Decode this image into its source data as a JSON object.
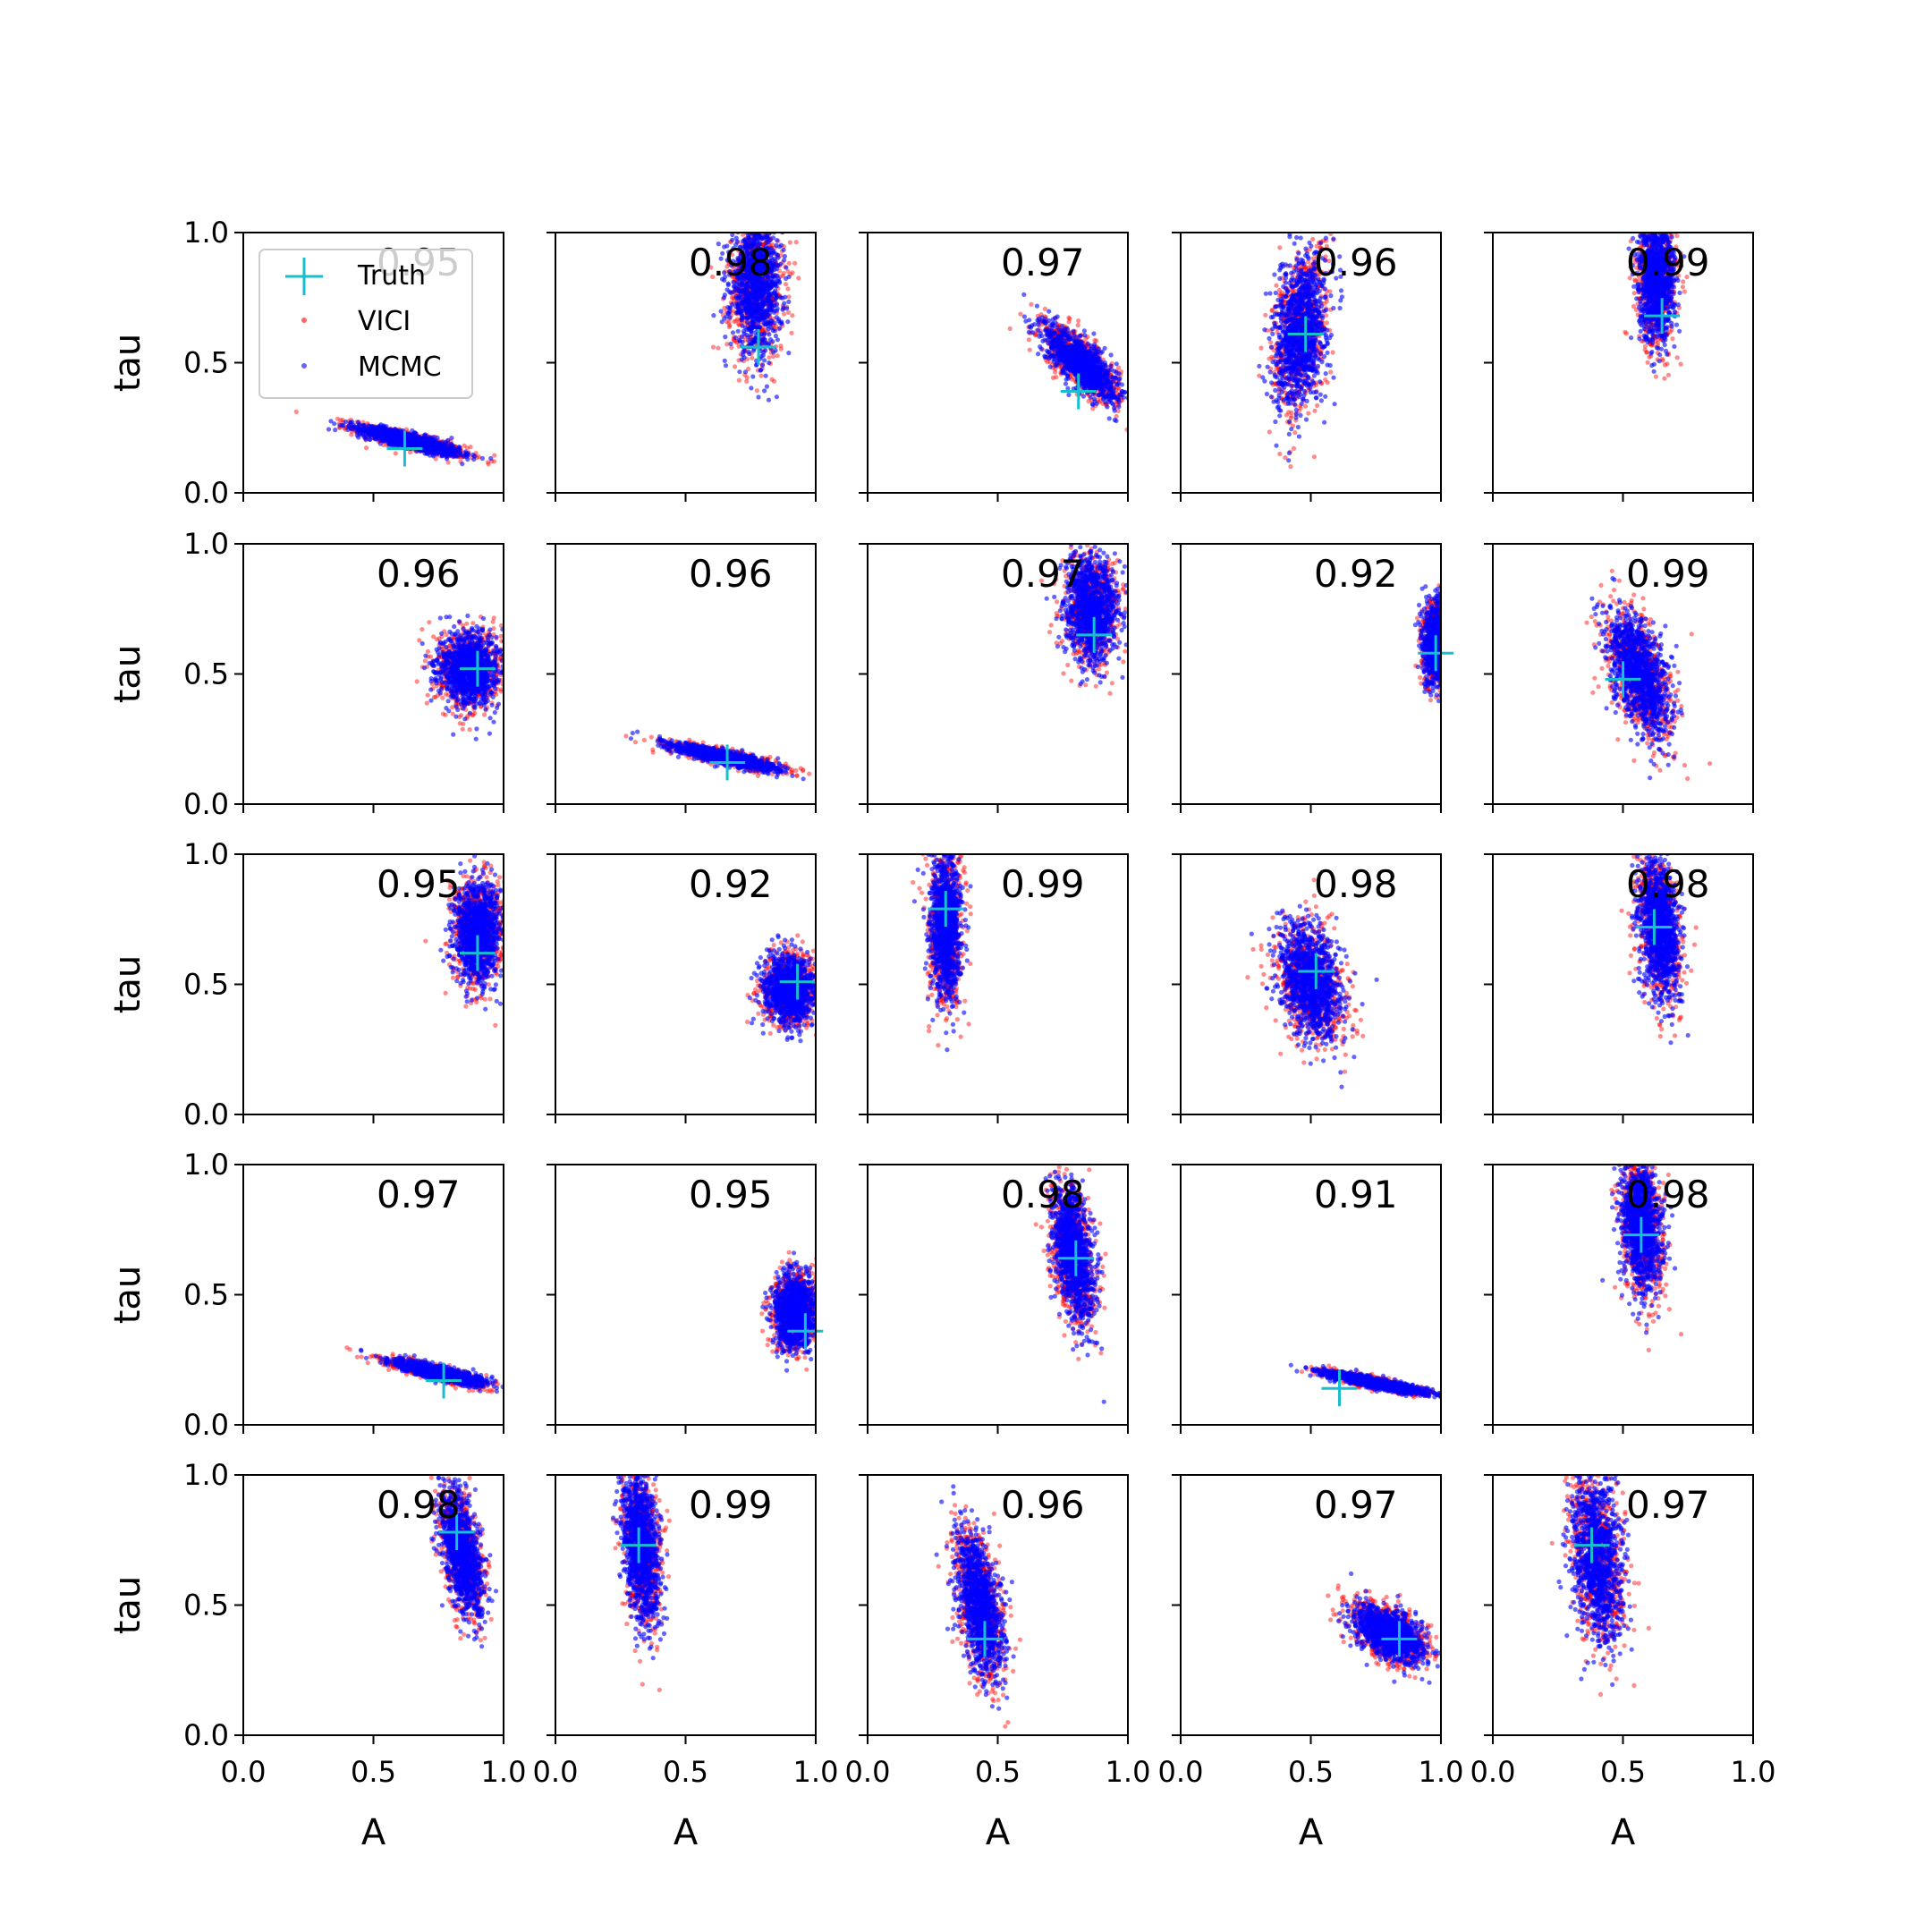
{
  "figure": {
    "rows": 5,
    "cols": 5,
    "xlabel": "A",
    "ylabel": "tau",
    "xlim": [
      0,
      1
    ],
    "ylim": [
      0,
      1
    ],
    "xticks": [
      "0.0",
      "0.5",
      "1.0"
    ],
    "yticks": [
      "0.0",
      "0.5",
      "1.0"
    ]
  },
  "legend": {
    "placement": "upper-left of first panel",
    "entries": [
      {
        "label": "Truth",
        "marker": "plus",
        "color": "#17becf"
      },
      {
        "label": "VICI",
        "marker": "dot",
        "color": "#ff0000"
      },
      {
        "label": "MCMC",
        "marker": "dot",
        "color": "#0000ff"
      }
    ]
  },
  "colors": {
    "vici": "#ff0000",
    "mcmc": "#0000ff",
    "truth": "#17becf",
    "axes": "#000000"
  },
  "chart_data": {
    "type": "scatter",
    "description_of_marks": "Each panel: posterior sample clouds for VICI (red) and MCMC (blue) in (A, tau) space, truth marked with a cyan plus; number in corner is the overlap score.",
    "panels": [
      {
        "score": "0.95",
        "truth": [
          0.62,
          0.17
        ],
        "cloud": {
          "cx": 0.64,
          "cy": 0.2,
          "sx": 0.1,
          "sy": 0.028,
          "rho": -0.85
        }
      },
      {
        "score": "0.98",
        "truth": [
          0.78,
          0.56
        ],
        "cloud": {
          "cx": 0.77,
          "cy": 0.8,
          "sx": 0.05,
          "sy": 0.13,
          "rho": 0.0
        }
      },
      {
        "score": "0.97",
        "truth": [
          0.81,
          0.39
        ],
        "cloud": {
          "cx": 0.82,
          "cy": 0.5,
          "sx": 0.07,
          "sy": 0.07,
          "rho": -0.75
        }
      },
      {
        "score": "0.96",
        "truth": [
          0.48,
          0.61
        ],
        "cloud": {
          "cx": 0.46,
          "cy": 0.62,
          "sx": 0.05,
          "sy": 0.15,
          "rho": 0.3
        }
      },
      {
        "score": "0.99",
        "truth": [
          0.65,
          0.68
        ],
        "cloud": {
          "cx": 0.63,
          "cy": 0.82,
          "sx": 0.035,
          "sy": 0.12,
          "rho": 0.0
        }
      },
      {
        "score": "0.96",
        "truth": [
          0.9,
          0.52
        ],
        "cloud": {
          "cx": 0.87,
          "cy": 0.52,
          "sx": 0.06,
          "sy": 0.07,
          "rho": 0.0
        }
      },
      {
        "score": "0.96",
        "truth": [
          0.66,
          0.16
        ],
        "cloud": {
          "cx": 0.65,
          "cy": 0.18,
          "sx": 0.1,
          "sy": 0.025,
          "rho": -0.85
        }
      },
      {
        "score": "0.97",
        "truth": [
          0.87,
          0.65
        ],
        "cloud": {
          "cx": 0.86,
          "cy": 0.75,
          "sx": 0.05,
          "sy": 0.1,
          "rho": 0.0
        }
      },
      {
        "score": "0.92",
        "truth": [
          0.98,
          0.58
        ],
        "cloud": {
          "cx": 0.99,
          "cy": 0.62,
          "sx": 0.03,
          "sy": 0.08,
          "rho": 0.0
        }
      },
      {
        "score": "0.99",
        "truth": [
          0.5,
          0.48
        ],
        "cloud": {
          "cx": 0.56,
          "cy": 0.5,
          "sx": 0.06,
          "sy": 0.12,
          "rho": -0.5
        }
      },
      {
        "score": "0.95",
        "truth": [
          0.9,
          0.62
        ],
        "cloud": {
          "cx": 0.9,
          "cy": 0.7,
          "sx": 0.045,
          "sy": 0.1,
          "rho": 0.0
        }
      },
      {
        "score": "0.92",
        "truth": [
          0.93,
          0.51
        ],
        "cloud": {
          "cx": 0.9,
          "cy": 0.48,
          "sx": 0.05,
          "sy": 0.065,
          "rho": 0.0
        }
      },
      {
        "score": "0.99",
        "truth": [
          0.3,
          0.79
        ],
        "cloud": {
          "cx": 0.3,
          "cy": 0.72,
          "sx": 0.03,
          "sy": 0.14,
          "rho": 0.0
        }
      },
      {
        "score": "0.98",
        "truth": [
          0.52,
          0.55
        ],
        "cloud": {
          "cx": 0.5,
          "cy": 0.5,
          "sx": 0.06,
          "sy": 0.11,
          "rho": -0.3
        }
      },
      {
        "score": "0.98",
        "truth": [
          0.62,
          0.72
        ],
        "cloud": {
          "cx": 0.64,
          "cy": 0.72,
          "sx": 0.04,
          "sy": 0.14,
          "rho": -0.3
        }
      },
      {
        "score": "0.97",
        "truth": [
          0.77,
          0.17
        ],
        "cloud": {
          "cx": 0.75,
          "cy": 0.2,
          "sx": 0.09,
          "sy": 0.025,
          "rho": -0.85
        }
      },
      {
        "score": "0.95",
        "truth": [
          0.96,
          0.36
        ],
        "cloud": {
          "cx": 0.92,
          "cy": 0.44,
          "sx": 0.04,
          "sy": 0.07,
          "rho": 0.0
        }
      },
      {
        "score": "0.98",
        "truth": [
          0.8,
          0.64
        ],
        "cloud": {
          "cx": 0.79,
          "cy": 0.66,
          "sx": 0.04,
          "sy": 0.13,
          "rho": -0.4
        }
      },
      {
        "score": "0.91",
        "truth": [
          0.61,
          0.14
        ],
        "cloud": {
          "cx": 0.75,
          "cy": 0.16,
          "sx": 0.1,
          "sy": 0.022,
          "rho": -0.9
        }
      },
      {
        "score": "0.98",
        "truth": [
          0.57,
          0.73
        ],
        "cloud": {
          "cx": 0.57,
          "cy": 0.76,
          "sx": 0.04,
          "sy": 0.13,
          "rho": -0.2
        }
      },
      {
        "score": "0.98",
        "truth": [
          0.82,
          0.78
        ],
        "cloud": {
          "cx": 0.84,
          "cy": 0.7,
          "sx": 0.04,
          "sy": 0.12,
          "rho": -0.5
        }
      },
      {
        "score": "0.99",
        "truth": [
          0.32,
          0.73
        ],
        "cloud": {
          "cx": 0.33,
          "cy": 0.72,
          "sx": 0.035,
          "sy": 0.15,
          "rho": -0.3
        }
      },
      {
        "score": "0.96",
        "truth": [
          0.45,
          0.37
        ],
        "cloud": {
          "cx": 0.43,
          "cy": 0.5,
          "sx": 0.045,
          "sy": 0.14,
          "rho": -0.5
        }
      },
      {
        "score": "0.97",
        "truth": [
          0.84,
          0.37
        ],
        "cloud": {
          "cx": 0.8,
          "cy": 0.39,
          "sx": 0.07,
          "sy": 0.055,
          "rho": -0.5
        }
      },
      {
        "score": "0.97",
        "truth": [
          0.38,
          0.73
        ],
        "cloud": {
          "cx": 0.4,
          "cy": 0.68,
          "sx": 0.05,
          "sy": 0.16,
          "rho": -0.3
        }
      }
    ]
  }
}
